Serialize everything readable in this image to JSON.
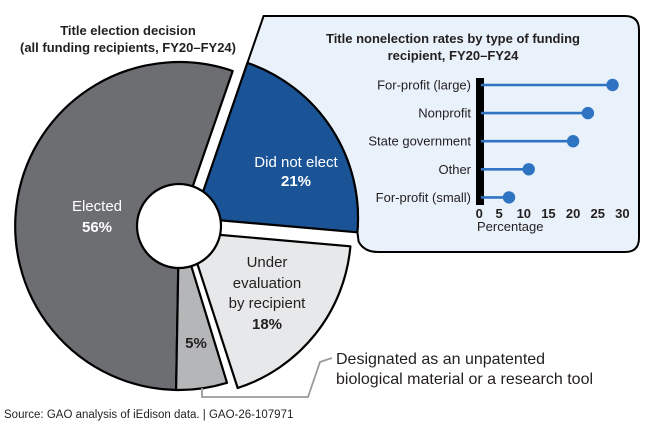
{
  "figure": {
    "source_line": "Source: GAO analysis of iEdison data.  |  GAO-26-107971"
  },
  "pie": {
    "title": [
      "Title election decision",
      "(all funding recipients, FY20–FY24)"
    ],
    "slices": {
      "elected": {
        "label": "Elected",
        "value_label": "56%"
      },
      "did_not_elect": {
        "label": "Did not elect",
        "value_label": "21%"
      },
      "under_evaluation": {
        "label": [
          "Under",
          "evaluation",
          "by recipient"
        ],
        "value_label": "18%"
      },
      "designated": {
        "value_label": "5%"
      }
    },
    "callout": [
      "Designated as an unpatented",
      "biological material or a research tool"
    ]
  },
  "panel": {
    "title": [
      "Title nonelection rates by type of funding",
      "recipient, FY20–FY24"
    ],
    "xlabel": "Percentage"
  },
  "chart_data": [
    {
      "type": "pie",
      "title": "Title election decision (all funding recipients, FY20–FY24)",
      "labels": [
        "Did not elect",
        "Under evaluation by recipient",
        "Designated as an unpatented biological material or a research tool",
        "Elected"
      ],
      "values": [
        21,
        18,
        5,
        56
      ],
      "unit": "percent",
      "donut": true,
      "exploded_slices": [
        "Did not elect",
        "Under evaluation by recipient"
      ]
    },
    {
      "type": "bar",
      "subtype": "lollipop",
      "title": "Title nonelection rates by type of funding recipient, FY20–FY24",
      "categories": [
        "For-profit (large)",
        "Nonprofit",
        "State government",
        "Other",
        "For-profit (small)"
      ],
      "values": [
        28,
        23,
        20,
        11,
        7
      ],
      "xlabel": "Percentage",
      "xlim": [
        0,
        30
      ],
      "xticks": [
        0,
        5,
        10,
        15,
        20,
        25,
        30
      ],
      "legend": "none",
      "grid": false
    }
  ],
  "colors": {
    "elected": "#6d6e71",
    "did_not_elect": "#1b5496",
    "under_evaluation": "#e7e8e9",
    "designated": "#b4b6b8",
    "panel_bg": "#e9f1fa",
    "lollipop": "#2e74c3",
    "outline": "#000000",
    "bracket": "#9b9b9b",
    "text": "#231f20"
  }
}
